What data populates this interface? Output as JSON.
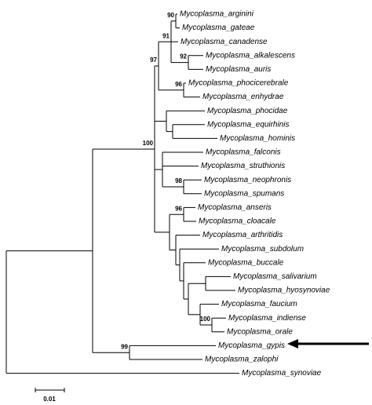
{
  "leaves": [
    "Mycoplasma_arginini",
    "Mycoplasma_gateae",
    "Mycoplasma_canadense",
    "Mycoplasma_alkalescens",
    "Mycoplasma_auris",
    "Mycoplasma_phocicerebrale",
    "Mycoplasma_enhydrae",
    "Mycoplasma_phocidae",
    "Mycoplasma_equirhinis",
    "Mycoplasma_hominis",
    "Mycoplasma_falconis",
    "Mycoplasma_struthionis",
    "Mycoplasma_neophronis",
    "Mycoplasma_spumans",
    "Mycoplasma_anseris",
    "Mycoplasma_cloacale",
    "Mycoplasma_arthritidis",
    "Mycoplasma_subdolum",
    "Mycoplasma_buccale",
    "Mycoplasma_salivarium",
    "Mycoplasma_hyosynoviae",
    "Mycoplasma_faucium",
    "Mycoplasma_indiense",
    "Mycoplasma_orale",
    "Mycoplasma_gypis",
    "Mycoplasma_zalophi",
    "Mycoplasma_synoviae"
  ],
  "bootstraps": [
    90,
    91,
    92,
    97,
    96,
    98,
    96,
    100,
    100,
    99
  ],
  "scale_bar": {
    "label": "0.01"
  }
}
